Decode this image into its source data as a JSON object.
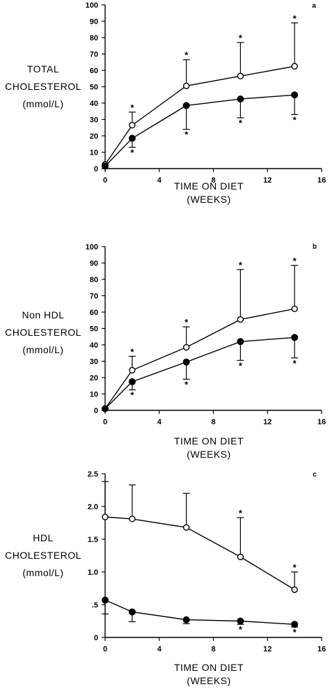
{
  "chart_data": [
    {
      "type": "line",
      "panel_label": "a",
      "ylabel_lines": [
        "TOTAL",
        "CHOLESTEROL",
        "(mmol/L)"
      ],
      "xlabel_lines": [
        "TIME ON DIET",
        "(WEEKS)"
      ],
      "xlim": [
        0,
        16
      ],
      "ylim": [
        0,
        100
      ],
      "x_ticks": [
        0,
        4,
        8,
        12,
        16
      ],
      "x_tick_labels": [
        "0",
        "4",
        "8",
        "12",
        "16"
      ],
      "y_ticks": [
        0,
        10,
        20,
        30,
        40,
        50,
        60,
        70,
        80,
        90,
        100
      ],
      "y_tick_labels": [
        "0",
        "10",
        "20",
        "30",
        "40",
        "50",
        "60",
        "70",
        "80",
        "90",
        "100"
      ],
      "series": [
        {
          "marker": "open-circle",
          "x": [
            0,
            2,
            6,
            10,
            14
          ],
          "y": [
            2.5,
            26.5,
            50.5,
            56.5,
            62.5
          ],
          "err_up": [
            0,
            34.5,
            66.5,
            77,
            89
          ],
          "err_down": [
            null,
            null,
            null,
            null,
            null
          ],
          "star_above": [
            false,
            true,
            true,
            true,
            true
          ],
          "star_below": [
            false,
            false,
            false,
            false,
            false
          ]
        },
        {
          "marker": "filled-circle",
          "x": [
            0,
            2,
            6,
            10,
            14
          ],
          "y": [
            1.5,
            18.5,
            38.5,
            42.5,
            45
          ],
          "err_up": [
            null,
            null,
            null,
            null,
            null
          ],
          "err_down": [
            null,
            13,
            24,
            31,
            33
          ],
          "star_above": [
            false,
            false,
            false,
            false,
            false
          ],
          "star_below": [
            false,
            true,
            true,
            true,
            true
          ]
        }
      ]
    },
    {
      "type": "line",
      "panel_label": "b",
      "ylabel_lines": [
        "Non HDL",
        "CHOLESTEROL",
        "(mmol/L)"
      ],
      "xlabel_lines": [
        "TIME ON DIET",
        "(WEEKS)"
      ],
      "xlim": [
        0,
        16
      ],
      "ylim": [
        0,
        100
      ],
      "x_ticks": [
        0,
        4,
        8,
        12,
        16
      ],
      "x_tick_labels": [
        "0",
        "4",
        "8",
        "12",
        "16"
      ],
      "y_ticks": [
        0,
        10,
        20,
        30,
        40,
        50,
        60,
        70,
        80,
        90,
        100
      ],
      "y_tick_labels": [
        "0",
        "10",
        "20",
        "30",
        "40",
        "50",
        "60",
        "70",
        "80",
        "90",
        "100"
      ],
      "series": [
        {
          "marker": "open-circle",
          "x": [
            0,
            2,
            6,
            10,
            14
          ],
          "y": [
            1,
            24.5,
            38.5,
            55.5,
            62
          ],
          "err_up": [
            null,
            33,
            51,
            86,
            88.5
          ],
          "err_down": [
            null,
            null,
            null,
            null,
            null
          ],
          "star_above": [
            false,
            true,
            true,
            true,
            true
          ],
          "star_below": [
            false,
            false,
            false,
            false,
            false
          ]
        },
        {
          "marker": "filled-circle",
          "x": [
            0,
            2,
            6,
            10,
            14
          ],
          "y": [
            1,
            17.5,
            29.5,
            42,
            44.5
          ],
          "err_up": [
            null,
            null,
            null,
            null,
            null
          ],
          "err_down": [
            null,
            12.5,
            19,
            30.5,
            32
          ],
          "star_above": [
            false,
            false,
            false,
            false,
            false
          ],
          "star_below": [
            false,
            true,
            true,
            true,
            true
          ]
        }
      ]
    },
    {
      "type": "line",
      "panel_label": "c",
      "ylabel_lines": [
        "HDL",
        "CHOLESTEROL",
        "(mmol/L)"
      ],
      "xlabel_lines": [
        "TIME ON DIET",
        "(WEEKS)"
      ],
      "xlim": [
        0,
        16
      ],
      "ylim": [
        0,
        2.5
      ],
      "x_ticks": [
        0,
        4,
        8,
        12,
        16
      ],
      "x_tick_labels": [
        "0",
        "4",
        "8",
        "12",
        "16"
      ],
      "y_ticks": [
        0,
        0.5,
        1.0,
        1.5,
        2.0,
        2.5
      ],
      "y_tick_labels": [
        "0",
        ".5",
        "1.0",
        "1.5",
        "2.0",
        "2.5"
      ],
      "series": [
        {
          "marker": "open-circle",
          "x": [
            0,
            2,
            6,
            10,
            14
          ],
          "y": [
            1.84,
            1.81,
            1.68,
            1.23,
            0.73
          ],
          "err_up": [
            2.38,
            2.33,
            2.2,
            1.83,
            1.0
          ],
          "err_down": [
            null,
            null,
            null,
            null,
            null
          ],
          "star_above": [
            false,
            false,
            false,
            true,
            true
          ],
          "star_below": [
            false,
            false,
            false,
            false,
            false
          ]
        },
        {
          "marker": "filled-circle",
          "x": [
            0,
            2,
            6,
            10,
            14
          ],
          "y": [
            0.57,
            0.39,
            0.27,
            0.25,
            0.2
          ],
          "err_up": [
            null,
            null,
            null,
            null,
            null
          ],
          "err_down": [
            0.36,
            0.24,
            0.21,
            0.2,
            0.16
          ],
          "star_above": [
            false,
            false,
            false,
            false,
            false
          ],
          "star_below": [
            false,
            false,
            false,
            true,
            true
          ]
        }
      ]
    }
  ]
}
